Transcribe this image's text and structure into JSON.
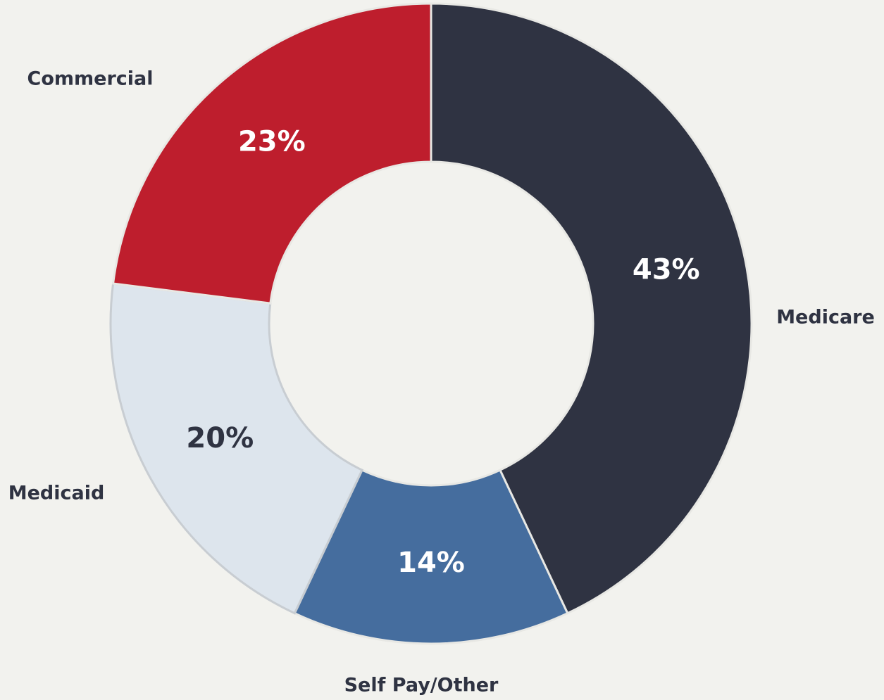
{
  "chart_data": {
    "type": "donut",
    "categories": [
      "Medicare",
      "Self Pay/Other",
      "Medicaid",
      "Commercial"
    ],
    "values": [
      43,
      14,
      20,
      23
    ],
    "value_labels": [
      "43%",
      "14%",
      "20%",
      "23%"
    ],
    "colors": [
      "#2f3342",
      "#456d9e",
      "#dde5ed",
      "#be1e2d"
    ]
  }
}
